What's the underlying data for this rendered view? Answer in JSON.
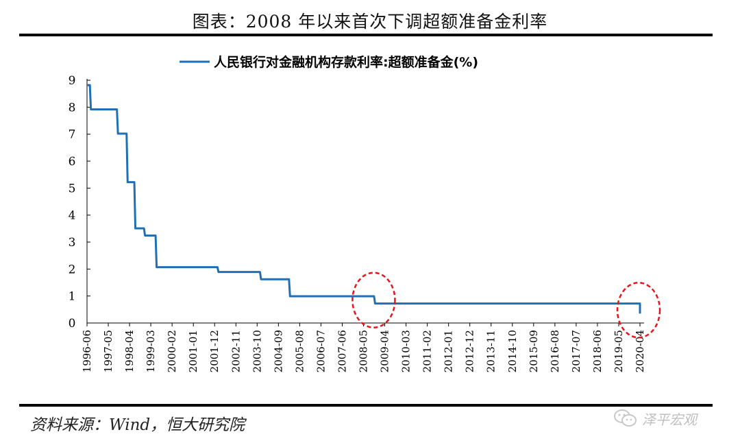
{
  "page": {
    "title": "图表：2008 年以来首次下调超额准备金利率",
    "source": "资料来源：Wind，恒大研究院",
    "watermark": "泽平宏观",
    "watermark_icon": "wechat-icon"
  },
  "chart_data": {
    "type": "line",
    "title": "",
    "xlabel": "",
    "ylabel": "",
    "ylim": [
      0,
      9
    ],
    "yticks": [
      0,
      1,
      2,
      3,
      4,
      5,
      6,
      7,
      8,
      9
    ],
    "xlim": [
      "1996-06",
      "2020-04"
    ],
    "xticks": [
      "1996-06",
      "1997-05",
      "1998-04",
      "1999-03",
      "2000-02",
      "2001-01",
      "2001-12",
      "2002-11",
      "2003-10",
      "2004-09",
      "2005-08",
      "2006-07",
      "2007-06",
      "2008-05",
      "2009-04",
      "2010-03",
      "2011-02",
      "2012-01",
      "2012-12",
      "2013-11",
      "2014-10",
      "2015-09",
      "2016-08",
      "2017-07",
      "2018-06",
      "2019-05",
      "2020-04"
    ],
    "grid": false,
    "legend_position": "top",
    "color": "#1f6fb4",
    "highlight_color": "#e8141c",
    "series": [
      {
        "name": "人民银行对金融机构存款利率:超额准备金(%)",
        "step": true,
        "points": [
          [
            "1996-06",
            8.82
          ],
          [
            "1996-08",
            7.92
          ],
          [
            "1997-10",
            7.02
          ],
          [
            "1998-03",
            5.22
          ],
          [
            "1998-07",
            3.51
          ],
          [
            "1998-12",
            3.24
          ],
          [
            "1999-06",
            2.07
          ],
          [
            "2002-02",
            1.89
          ],
          [
            "2003-12",
            1.62
          ],
          [
            "2005-03",
            0.99
          ],
          [
            "2008-11",
            0.72
          ],
          [
            "2020-04",
            0.35
          ]
        ]
      }
    ],
    "highlights": [
      "2008-11",
      "2020-04"
    ]
  }
}
